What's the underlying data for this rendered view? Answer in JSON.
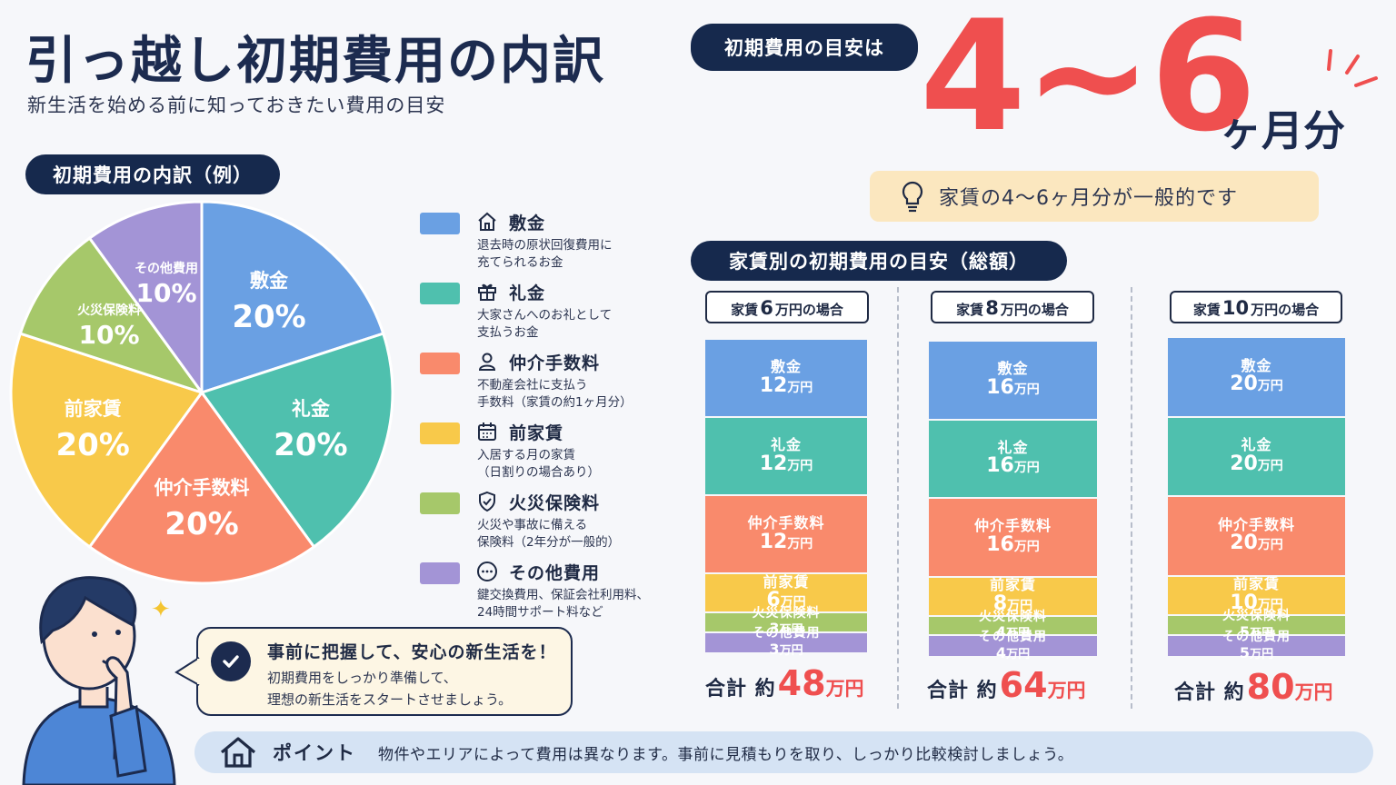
{
  "header": {
    "title": "引っ越し初期費用の内訳",
    "subtitle": "新生活を始める前に知っておきたい費用の目安"
  },
  "guideline": {
    "pill": "初期費用の目安は",
    "big_number": "4~6",
    "unit": "ヶ月分",
    "note": "家賃の4～6ヶ月分が一般的です"
  },
  "breakdown": {
    "pill": "初期費用の内訳（例）"
  },
  "colors": {
    "shikikin": "#6aa0e3",
    "reikin": "#4fc0ae",
    "chukai": "#f98a6c",
    "maeyachin": "#f8c94a",
    "kasai": "#a6c86a",
    "other": "#a394d6",
    "accent": "#ef4f4f",
    "navy": "#16294d"
  },
  "legend": [
    {
      "icon": "house-icon",
      "title": "敷金",
      "desc": "退去時の原状回復費用に\n充てられるお金"
    },
    {
      "icon": "gift-icon",
      "title": "礼金",
      "desc": "大家さんへのお礼として\n支払うお金"
    },
    {
      "icon": "person-icon",
      "title": "仲介手数料",
      "desc": "不動産会社に支払う\n手数料（家賃の約1ヶ月分）"
    },
    {
      "icon": "calendar-icon",
      "title": "前家賃",
      "desc": "入居する月の家賃\n（日割りの場合あり）"
    },
    {
      "icon": "shield-icon",
      "title": "火災保険料",
      "desc": "火災や事故に備える\n保険料（2年分が一般的）"
    },
    {
      "icon": "dots-icon",
      "title": "その他費用",
      "desc": "鍵交換費用、保証会社利用料、\n24時間サポート料など"
    }
  ],
  "speech": {
    "title": "事前に把握して、安心の新生活を！",
    "body": "初期費用をしっかり準備して、\n理想の新生活をスタートさせましょう。"
  },
  "by_rent": {
    "pill": "家賃別の初期費用の目安（総額）",
    "rent_prefix": "家賃",
    "rent_suffix": "万円の場合",
    "total_label": "合計 約",
    "total_unit": "万円",
    "value_unit": "万円"
  },
  "point": {
    "label": "ポイント",
    "text": "物件やエリアによって費用は異なります。事前に見積もりを取り、しっかり比較検討しましょう。"
  },
  "chart_data": [
    {
      "type": "pie",
      "title": "初期費用の内訳（例）",
      "categories": [
        "敷金",
        "礼金",
        "仲介手数料",
        "前家賃",
        "火災保険料",
        "その他費用"
      ],
      "values": [
        20,
        20,
        20,
        20,
        10,
        10
      ],
      "value_labels": [
        "20%",
        "20%",
        "20%",
        "20%",
        "10%",
        "10%"
      ],
      "legend": "right"
    },
    {
      "type": "bar",
      "stacked": true,
      "title": "家賃別の初期費用の目安（総額）",
      "categories": [
        "6",
        "8",
        "10"
      ],
      "series": [
        {
          "name": "敷金",
          "values": [
            12,
            16,
            20
          ]
        },
        {
          "name": "礼金",
          "values": [
            12,
            16,
            20
          ]
        },
        {
          "name": "仲介手数料",
          "values": [
            12,
            16,
            20
          ]
        },
        {
          "name": "前家賃",
          "values": [
            6,
            8,
            10
          ]
        },
        {
          "name": "火災保険料",
          "values": [
            3,
            4,
            5
          ]
        },
        {
          "name": "その他費用",
          "values": [
            3,
            4,
            5
          ]
        }
      ],
      "totals": [
        48,
        64,
        80
      ]
    }
  ]
}
